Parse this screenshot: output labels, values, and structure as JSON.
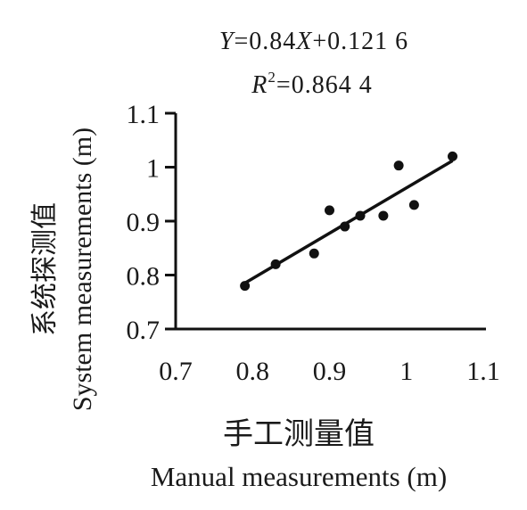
{
  "chart_data": {
    "type": "scatter",
    "equation_y": "Y",
    "equation_rest": "=0.84",
    "equation_x": "X",
    "equation_tail": "+0.121 6",
    "r2_label": "R",
    "r2_sup": "2",
    "r2_value": "=0.864 4",
    "xlabel_cn": "手工测量值",
    "xlabel_en": "Manual measurements (m)",
    "ylabel_cn": "系统探测值",
    "ylabel_en": "System measurements (m)",
    "xlim": [
      0.7,
      1.1
    ],
    "ylim": [
      0.7,
      1.1
    ],
    "x_ticks": [
      "0.7",
      "0.8",
      "0.9",
      "1",
      "1.1"
    ],
    "y_ticks": [
      "0.7",
      "0.8",
      "0.9",
      "1",
      "1.1"
    ],
    "points": [
      {
        "x": 0.79,
        "y": 0.78
      },
      {
        "x": 0.83,
        "y": 0.82
      },
      {
        "x": 0.88,
        "y": 0.84
      },
      {
        "x": 0.9,
        "y": 0.92
      },
      {
        "x": 0.92,
        "y": 0.89
      },
      {
        "x": 0.94,
        "y": 0.91
      },
      {
        "x": 0.97,
        "y": 0.91
      },
      {
        "x": 0.99,
        "y": 1.003
      },
      {
        "x": 1.01,
        "y": 0.93
      },
      {
        "x": 1.06,
        "y": 1.02
      }
    ],
    "trendline": {
      "slope": 0.84,
      "intercept": 0.1216,
      "x_range": [
        0.79,
        1.06
      ]
    }
  }
}
